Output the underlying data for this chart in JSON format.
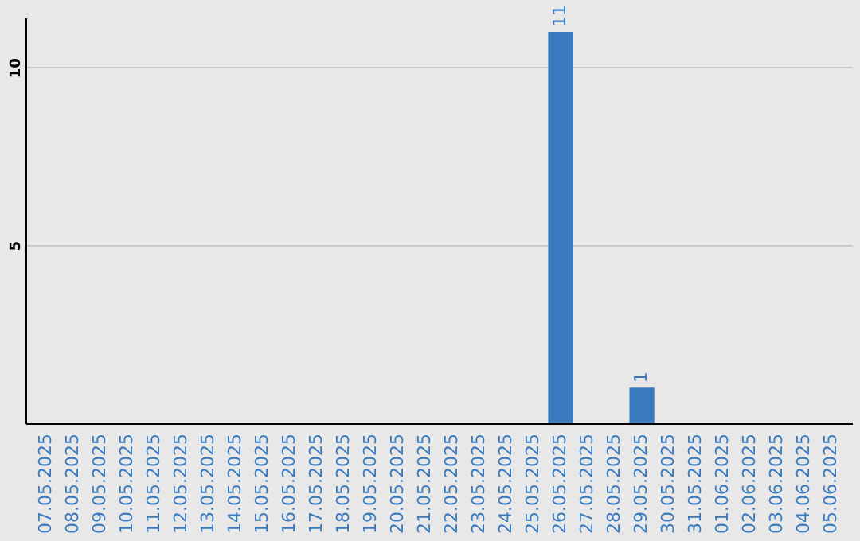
{
  "chart_data": {
    "type": "bar",
    "categories": [
      "07.05.2025",
      "08.05.2025",
      "09.05.2025",
      "10.05.2025",
      "11.05.2025",
      "12.05.2025",
      "13.05.2025",
      "14.05.2025",
      "15.05.2025",
      "16.05.2025",
      "17.05.2025",
      "18.05.2025",
      "19.05.2025",
      "20.05.2025",
      "21.05.2025",
      "22.05.2025",
      "23.05.2025",
      "24.05.2025",
      "25.05.2025",
      "26.05.2025",
      "27.05.2025",
      "28.05.2025",
      "29.05.2025",
      "30.05.2025",
      "31.05.2025",
      "01.06.2025",
      "02.06.2025",
      "03.06.2025",
      "04.06.2025",
      "05.06.2025"
    ],
    "values": [
      0,
      0,
      0,
      0,
      0,
      0,
      0,
      0,
      0,
      0,
      0,
      0,
      0,
      0,
      0,
      0,
      0,
      0,
      0,
      11,
      0,
      0,
      1,
      0,
      0,
      0,
      0,
      0,
      0,
      0
    ],
    "value_labels": [
      null,
      null,
      null,
      null,
      null,
      null,
      null,
      null,
      null,
      null,
      null,
      null,
      null,
      null,
      null,
      null,
      null,
      null,
      null,
      "11",
      null,
      null,
      "1",
      null,
      null,
      null,
      null,
      null,
      null,
      null
    ],
    "color": "#3a7bbf",
    "ylim": [
      0,
      11.4
    ],
    "yticks": [
      5,
      10
    ],
    "grid": "y"
  }
}
